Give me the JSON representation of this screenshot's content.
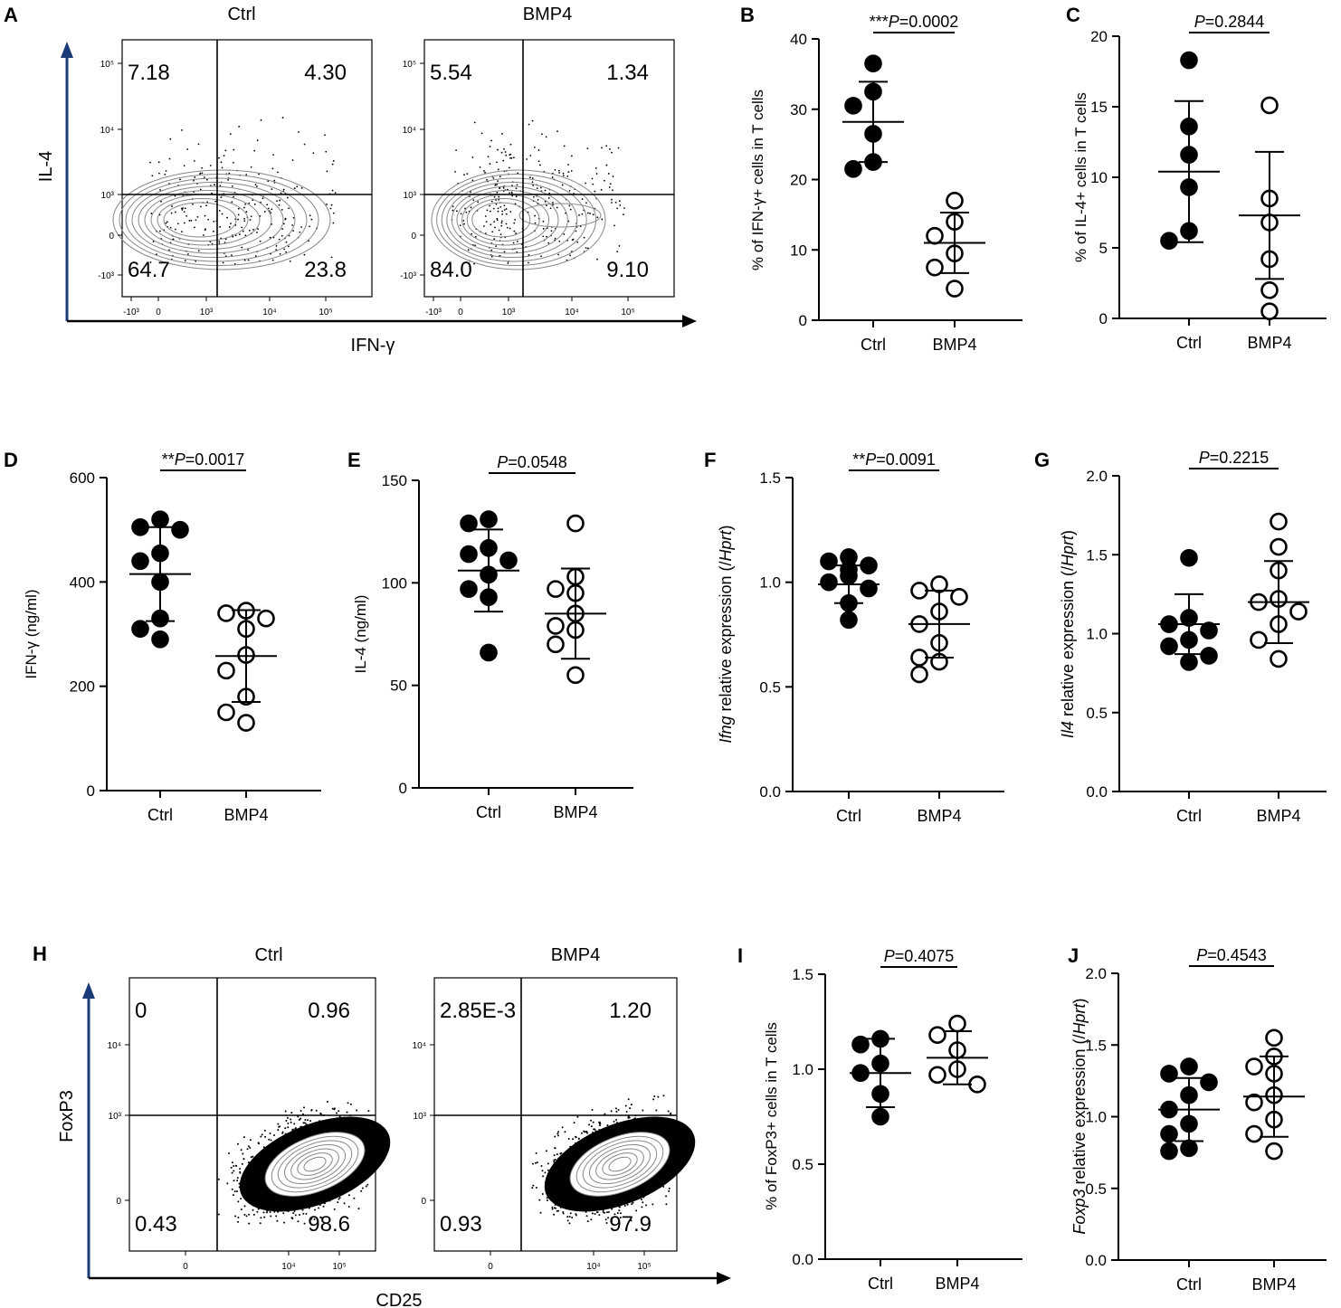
{
  "colors": {
    "ink": "#000000",
    "axis_arrow": "#1a3a78",
    "contour": "#888888"
  },
  "chart_data": [
    {
      "panel": "A",
      "type": "scatter",
      "subtype": "flow-cytometry-contour",
      "x_axis_label": "IFN-γ",
      "y_axis_label": "IL-4",
      "y_tick_labels": [
        "10⁵",
        "10⁴",
        "10³",
        "0",
        "-10³"
      ],
      "x_tick_labels": [
        "-10³",
        "0",
        "10³",
        "10⁴",
        "10⁵"
      ],
      "plots": [
        {
          "title": "Ctrl",
          "quadrants": {
            "ul": "7.18",
            "ur": "4.30",
            "ll": "64.7",
            "lr": "23.8"
          }
        },
        {
          "title": "BMP4",
          "quadrants": {
            "ul": "5.54",
            "ur": "1.34",
            "ll": "84.0",
            "lr": "9.10"
          }
        }
      ]
    },
    {
      "panel": "B",
      "type": "scatter",
      "ylabel": "% of IFN-γ+ cells in T cells",
      "categories": [
        "Ctrl",
        "BMP4"
      ],
      "ylim": [
        0,
        40
      ],
      "yticks": [
        0,
        10,
        20,
        30,
        40
      ],
      "sig_prefix": "***",
      "p_value": "=0.0002",
      "series": [
        {
          "name": "Ctrl",
          "filled": true,
          "values": [
            36.5,
            32.5,
            30.5,
            26.5,
            22.5,
            21.5
          ],
          "mean": 28.2,
          "sd": 5.7
        },
        {
          "name": "BMP4",
          "filled": false,
          "values": [
            17,
            14,
            12,
            9.5,
            7.5,
            4.5
          ],
          "mean": 11.0,
          "sd": 4.3
        }
      ]
    },
    {
      "panel": "C",
      "type": "scatter",
      "ylabel": "% of IL-4+ cells in T cells",
      "categories": [
        "Ctrl",
        "BMP4"
      ],
      "ylim": [
        0,
        20
      ],
      "yticks": [
        0,
        5,
        10,
        15,
        20
      ],
      "sig_prefix": "",
      "p_value": "=0.2844",
      "series": [
        {
          "name": "Ctrl",
          "filled": true,
          "values": [
            18.3,
            13.6,
            11.6,
            9.3,
            6.2,
            5.5
          ],
          "mean": 10.4,
          "sd": 5.0
        },
        {
          "name": "BMP4",
          "filled": false,
          "values": [
            15.1,
            8.5,
            6.8,
            4.2,
            2.0,
            0.5
          ],
          "mean": 7.3,
          "sd": 4.5
        }
      ]
    },
    {
      "panel": "D",
      "type": "scatter",
      "ylabel": "IFN-γ (ng/ml)",
      "categories": [
        "Ctrl",
        "BMP4"
      ],
      "ylim": [
        0,
        600
      ],
      "yticks": [
        0,
        200,
        400,
        600
      ],
      "sig_prefix": "**",
      "p_value": "=0.0017",
      "series": [
        {
          "name": "Ctrl",
          "filled": true,
          "values": [
            520,
            505,
            500,
            455,
            440,
            400,
            330,
            310,
            290
          ],
          "mean": 415,
          "sd": 90
        },
        {
          "name": "BMP4",
          "filled": false,
          "values": [
            345,
            340,
            330,
            310,
            260,
            230,
            180,
            150,
            130
          ],
          "mean": 258,
          "sd": 88
        }
      ]
    },
    {
      "panel": "E",
      "type": "scatter",
      "ylabel": "IL-4 (ng/ml)",
      "categories": [
        "Ctrl",
        "BMP4"
      ],
      "ylim": [
        0,
        150
      ],
      "yticks": [
        0,
        50,
        100,
        150
      ],
      "sig_prefix": "",
      "p_value": "=0.0548",
      "series": [
        {
          "name": "Ctrl",
          "filled": true,
          "values": [
            131,
            129,
            117,
            114,
            111,
            104,
            97,
            93,
            66
          ],
          "mean": 106,
          "sd": 20
        },
        {
          "name": "BMP4",
          "filled": false,
          "values": [
            129,
            103,
            97,
            95,
            85,
            79,
            77,
            70,
            55
          ],
          "mean": 85,
          "sd": 22
        }
      ]
    },
    {
      "panel": "F",
      "type": "scatter",
      "ylabel_italic": "Ifng",
      "ylabel_rest": " relative expression (/",
      "ylabel_italic2": "Hprt",
      "ylabel_end": ")",
      "categories": [
        "Ctrl",
        "BMP4"
      ],
      "ylim": [
        0,
        1.5
      ],
      "yticks": [
        "0.0",
        "0.5",
        "1.0",
        "1.5"
      ],
      "sig_prefix": "**",
      "p_value": "=0.0091",
      "series": [
        {
          "name": "Ctrl",
          "filled": true,
          "values": [
            1.12,
            1.1,
            1.08,
            1.06,
            1.03,
            1.0,
            0.97,
            0.9,
            0.82
          ],
          "mean": 0.99,
          "sd": 0.09
        },
        {
          "name": "BMP4",
          "filled": false,
          "values": [
            0.99,
            0.96,
            0.93,
            0.86,
            0.8,
            0.71,
            0.64,
            0.62,
            0.56
          ],
          "mean": 0.8,
          "sd": 0.16
        }
      ]
    },
    {
      "panel": "G",
      "type": "scatter",
      "ylabel_italic": "Il4",
      "ylabel_rest": " relative expression (/",
      "ylabel_italic2": "Hprt",
      "ylabel_end": ")",
      "categories": [
        "Ctrl",
        "BMP4"
      ],
      "ylim": [
        0,
        2.0
      ],
      "yticks": [
        "0.0",
        "0.5",
        "1.0",
        "1.5",
        "2.0"
      ],
      "sig_prefix": "",
      "p_value": "=0.2215",
      "series": [
        {
          "name": "Ctrl",
          "filled": true,
          "values": [
            1.48,
            1.1,
            1.06,
            1.02,
            0.96,
            0.92,
            0.86,
            0.82
          ],
          "mean": 1.06,
          "sd": 0.19
        },
        {
          "name": "BMP4",
          "filled": false,
          "values": [
            1.71,
            1.55,
            1.4,
            1.22,
            1.2,
            1.14,
            1.06,
            0.96,
            0.84
          ],
          "mean": 1.2,
          "sd": 0.26
        }
      ]
    },
    {
      "panel": "H",
      "type": "scatter",
      "subtype": "flow-cytometry-contour",
      "x_axis_label": "CD25",
      "y_axis_label": "FoxP3",
      "y_tick_labels": [
        "10⁴",
        "10³",
        "0"
      ],
      "x_tick_labels": [
        "0",
        "10⁴",
        "10⁵"
      ],
      "plots": [
        {
          "title": "Ctrl",
          "quadrants": {
            "ul": "0",
            "ur": "0.96",
            "ll": "0.43",
            "lr": "98.6"
          }
        },
        {
          "title": "BMP4",
          "quadrants": {
            "ul": "2.85E-3",
            "ur": "1.20",
            "ll": "0.93",
            "lr": "97.9"
          }
        }
      ]
    },
    {
      "panel": "I",
      "type": "scatter",
      "ylabel": "% of FoxP3+ cells in T cells",
      "categories": [
        "Ctrl",
        "BMP4"
      ],
      "ylim": [
        0,
        1.5
      ],
      "yticks": [
        "0.0",
        "0.5",
        "1.0",
        "1.5"
      ],
      "sig_prefix": "",
      "p_value": "=0.4075",
      "series": [
        {
          "name": "Ctrl",
          "filled": true,
          "values": [
            1.16,
            1.13,
            1.03,
            0.98,
            0.87,
            0.75
          ],
          "mean": 0.98,
          "sd": 0.18
        },
        {
          "name": "BMP4",
          "filled": false,
          "values": [
            1.24,
            1.18,
            1.1,
            1.0,
            0.97,
            0.92
          ],
          "mean": 1.06,
          "sd": 0.14
        }
      ]
    },
    {
      "panel": "J",
      "type": "scatter",
      "ylabel_italic": "Foxp3",
      "ylabel_rest": " relative expression (/",
      "ylabel_italic2": "Hprt",
      "ylabel_end": ")",
      "categories": [
        "Ctrl",
        "BMP4"
      ],
      "ylim": [
        0,
        2.0
      ],
      "yticks": [
        "0.0",
        "0.5",
        "1.0",
        "1.5",
        "2.0"
      ],
      "sig_prefix": "",
      "p_value": "=0.4543",
      "series": [
        {
          "name": "Ctrl",
          "filled": true,
          "values": [
            1.35,
            1.3,
            1.24,
            1.15,
            1.05,
            0.95,
            0.88,
            0.78,
            0.76
          ],
          "mean": 1.05,
          "sd": 0.22
        },
        {
          "name": "BMP4",
          "filled": false,
          "values": [
            1.55,
            1.42,
            1.35,
            1.3,
            1.15,
            1.1,
            0.98,
            0.88,
            0.76
          ],
          "mean": 1.14,
          "sd": 0.28
        }
      ]
    }
  ]
}
